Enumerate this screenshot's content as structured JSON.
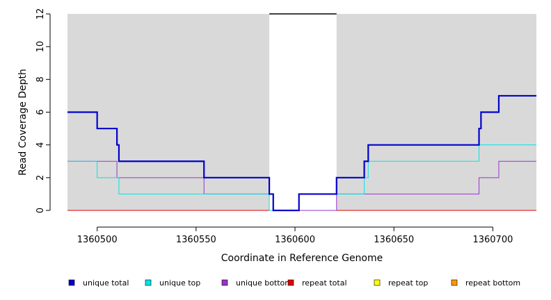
{
  "chart_data": {
    "type": "line",
    "title": "",
    "xlabel": "Coordinate in Reference Genome",
    "ylabel": "Read Coverage Depth",
    "xlim": [
      1360485,
      1360722
    ],
    "ylim": [
      0,
      12
    ],
    "x_ticks": [
      1360500,
      1360550,
      1360600,
      1360650,
      1360700
    ],
    "x_tick_labels": [
      "1360500",
      "1360550",
      "1360600",
      "1360650",
      "1360700"
    ],
    "y_ticks": [
      0,
      2,
      4,
      6,
      8,
      10,
      12
    ],
    "y_tick_labels": [
      "0",
      "2",
      "4",
      "6",
      "8",
      "10",
      "12"
    ],
    "shaded_regions": [
      {
        "from": 1360485,
        "to": 1360587,
        "color": "#d9d9d9"
      },
      {
        "from": 1360621,
        "to": 1360722,
        "color": "#d9d9d9"
      }
    ],
    "gap_top_line": {
      "from": 1360587,
      "to": 1360621,
      "y": 12
    },
    "legend_position": "bottom",
    "series": [
      {
        "name": "unique total",
        "color": "#0000cc",
        "step": true,
        "points": [
          [
            1360485,
            6
          ],
          [
            1360500,
            5
          ],
          [
            1360510,
            4
          ],
          [
            1360511,
            3
          ],
          [
            1360554,
            2
          ],
          [
            1360587,
            1
          ],
          [
            1360589,
            0
          ],
          [
            1360602,
            1
          ],
          [
            1360621,
            2
          ],
          [
            1360635,
            3
          ],
          [
            1360637,
            4
          ],
          [
            1360693,
            5
          ],
          [
            1360694,
            6
          ],
          [
            1360703,
            7
          ],
          [
            1360722,
            7
          ]
        ]
      },
      {
        "name": "unique top",
        "color": "#00e5e5",
        "step": true,
        "points": [
          [
            1360485,
            3
          ],
          [
            1360500,
            2
          ],
          [
            1360511,
            1
          ],
          [
            1360587,
            0
          ],
          [
            1360602,
            1
          ],
          [
            1360621,
            1
          ],
          [
            1360635,
            2
          ],
          [
            1360637,
            3
          ],
          [
            1360693,
            4
          ],
          [
            1360722,
            4
          ]
        ]
      },
      {
        "name": "unique bottom",
        "color": "#9932cc",
        "step": true,
        "points": [
          [
            1360485,
            3
          ],
          [
            1360510,
            2
          ],
          [
            1360554,
            1
          ],
          [
            1360587,
            1
          ],
          [
            1360589,
            0
          ],
          [
            1360621,
            1
          ],
          [
            1360693,
            2
          ],
          [
            1360703,
            3
          ],
          [
            1360722,
            3
          ]
        ]
      },
      {
        "name": "repeat total",
        "color": "#e00000",
        "step": true,
        "points": [
          [
            1360485,
            0
          ],
          [
            1360722,
            0
          ]
        ]
      },
      {
        "name": "repeat top",
        "color": "#ffff00",
        "step": true,
        "points": [
          [
            1360485,
            0
          ],
          [
            1360722,
            0
          ]
        ]
      },
      {
        "name": "repeat bottom",
        "color": "#ff9900",
        "step": true,
        "points": [
          [
            1360485,
            0
          ],
          [
            1360722,
            0
          ]
        ]
      }
    ]
  }
}
